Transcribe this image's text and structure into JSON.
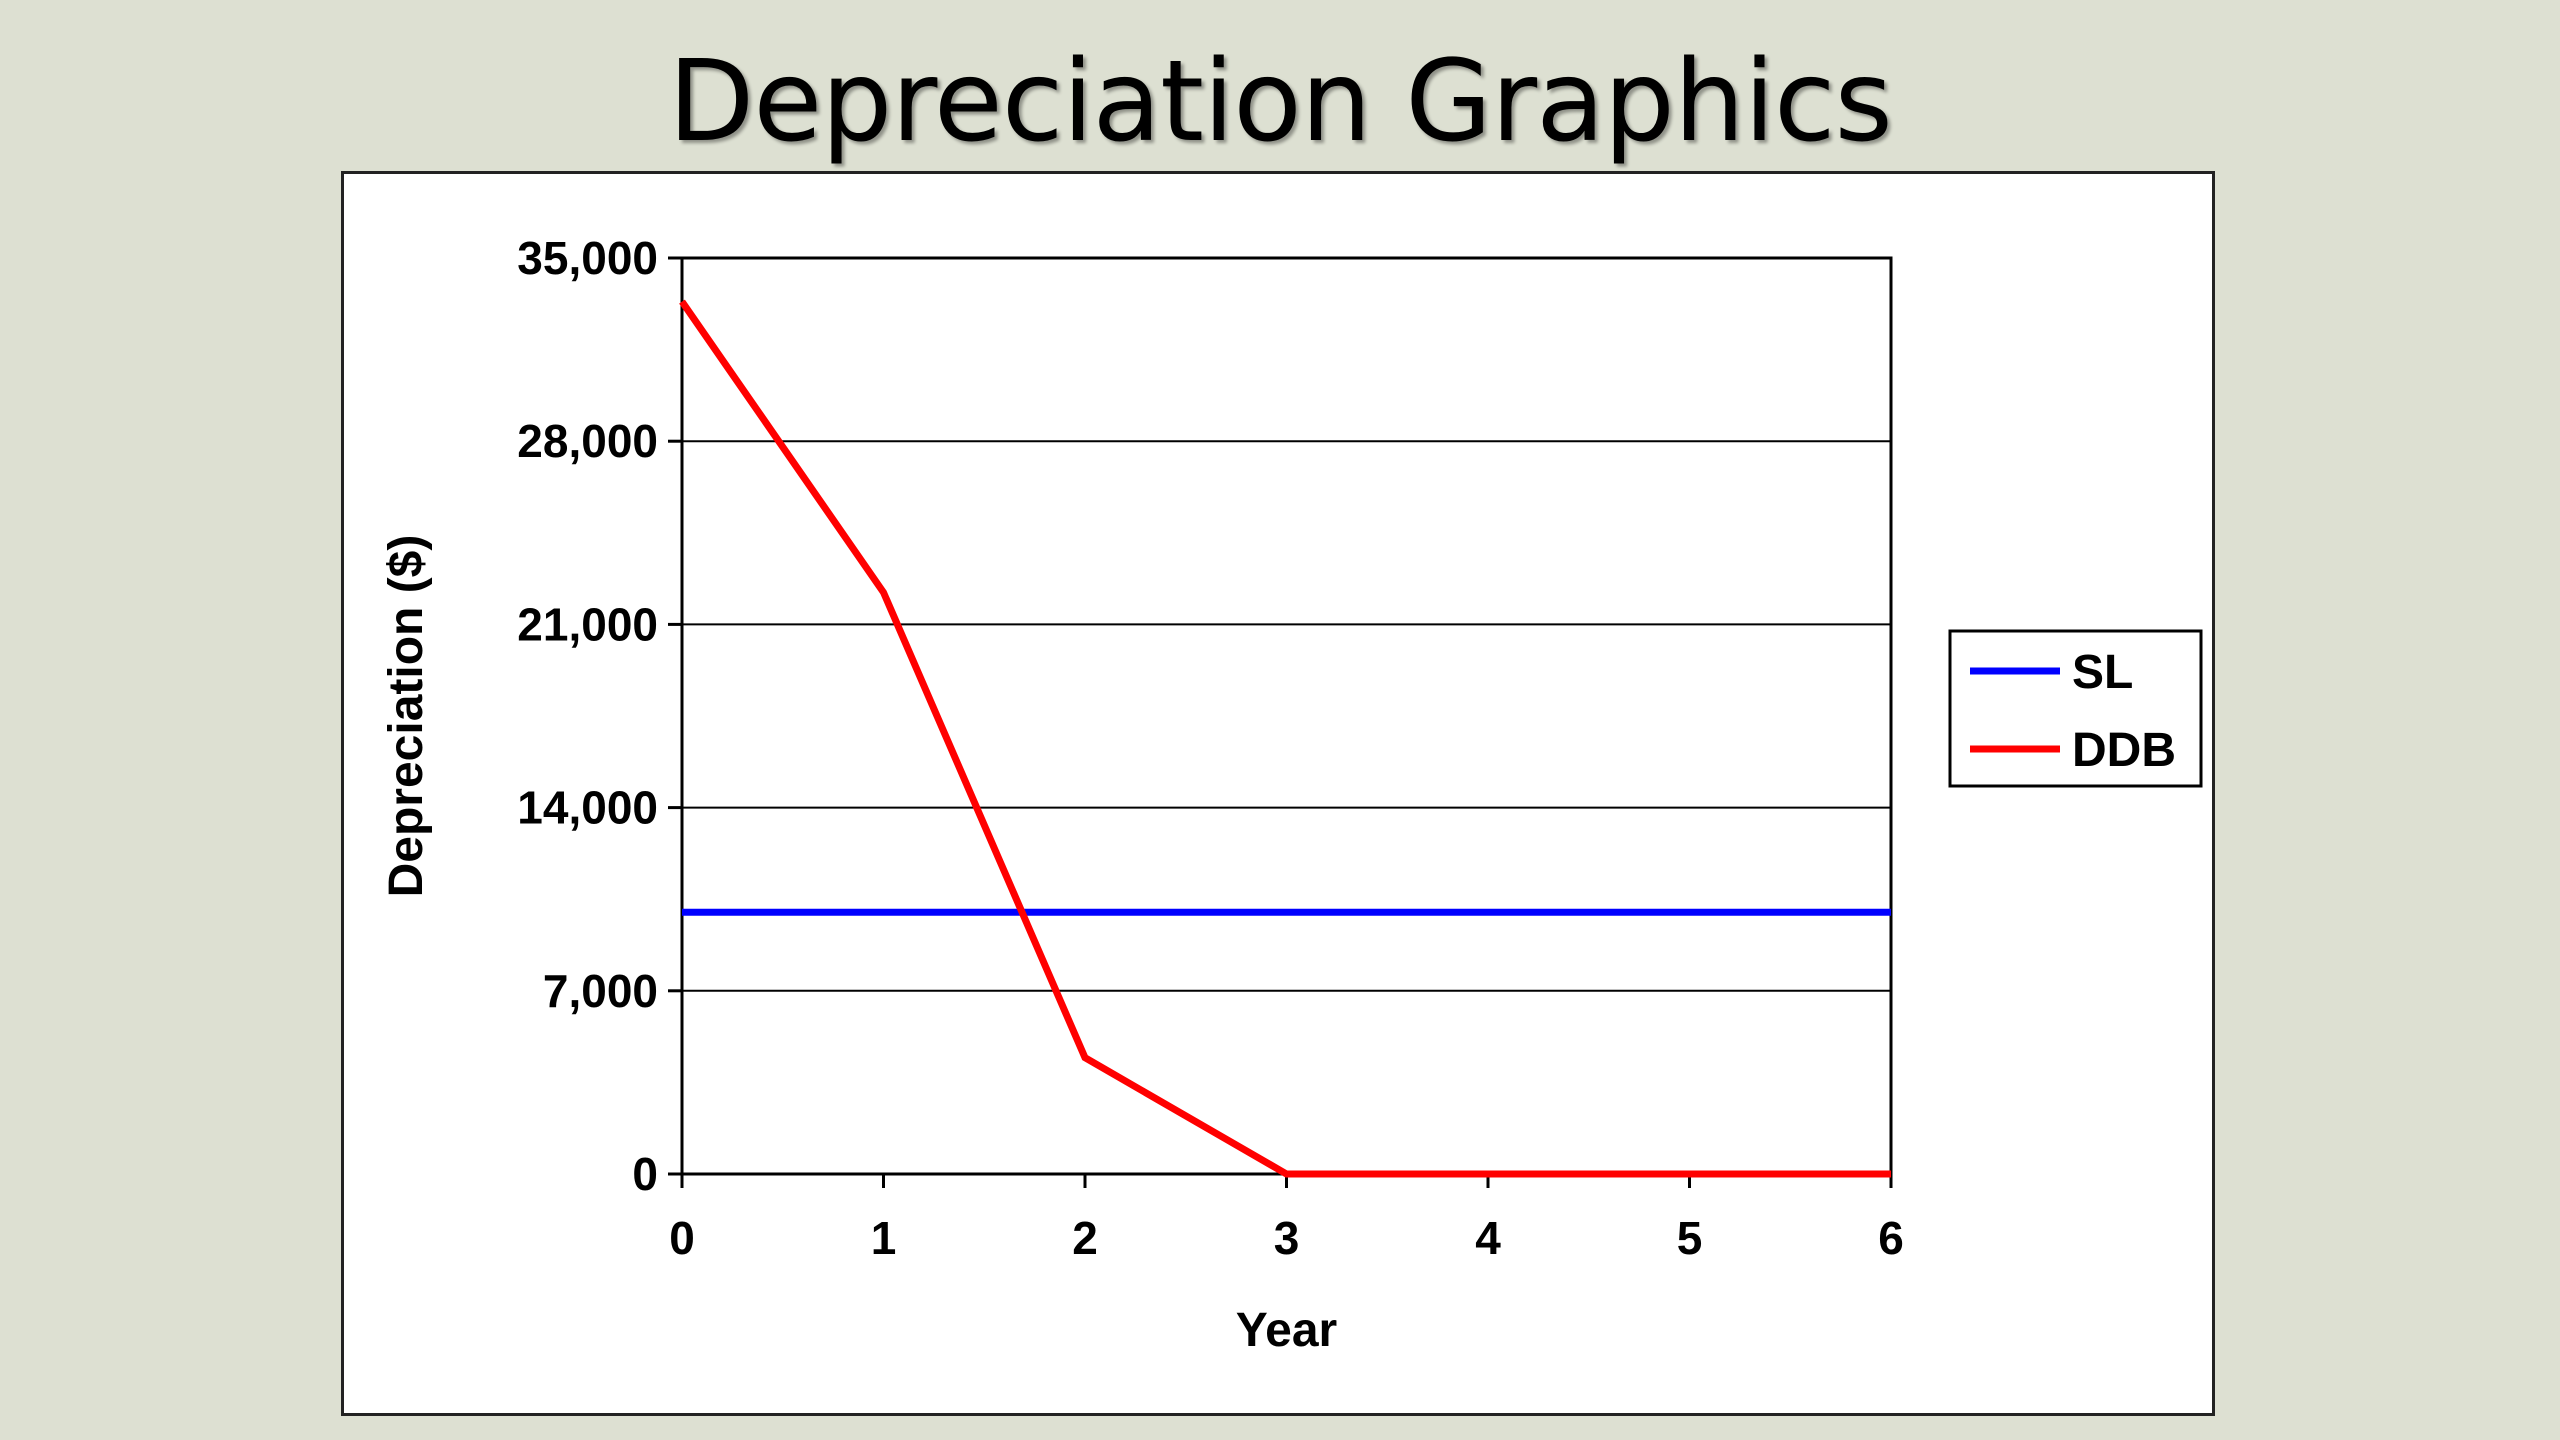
{
  "slide": {
    "title": "Depreciation Graphics"
  },
  "chart_data": {
    "type": "line",
    "title": "",
    "xlabel": "Year",
    "ylabel": "Depreciation ($)",
    "x": [
      0,
      1,
      2,
      3,
      4,
      5,
      6
    ],
    "x_tick_labels": [
      "0",
      "1",
      "2",
      "3",
      "4",
      "5",
      "6"
    ],
    "y_ticks": [
      0,
      7000,
      14000,
      21000,
      28000,
      35000
    ],
    "y_tick_labels": [
      "0",
      "7,000",
      "14,000",
      "21,000",
      "28,000",
      "35,000"
    ],
    "xlim": [
      0,
      6
    ],
    "ylim": [
      0,
      35000
    ],
    "grid": "horizontal",
    "legend_position": "right",
    "series": [
      {
        "name": "SL",
        "color": "#0000ff",
        "values": [
          10000,
          10000,
          10000,
          10000,
          10000,
          10000,
          10000
        ]
      },
      {
        "name": "DDB",
        "color": "#ff0000",
        "values": [
          33333,
          22222,
          4444,
          0,
          0,
          0,
          0
        ]
      }
    ]
  }
}
